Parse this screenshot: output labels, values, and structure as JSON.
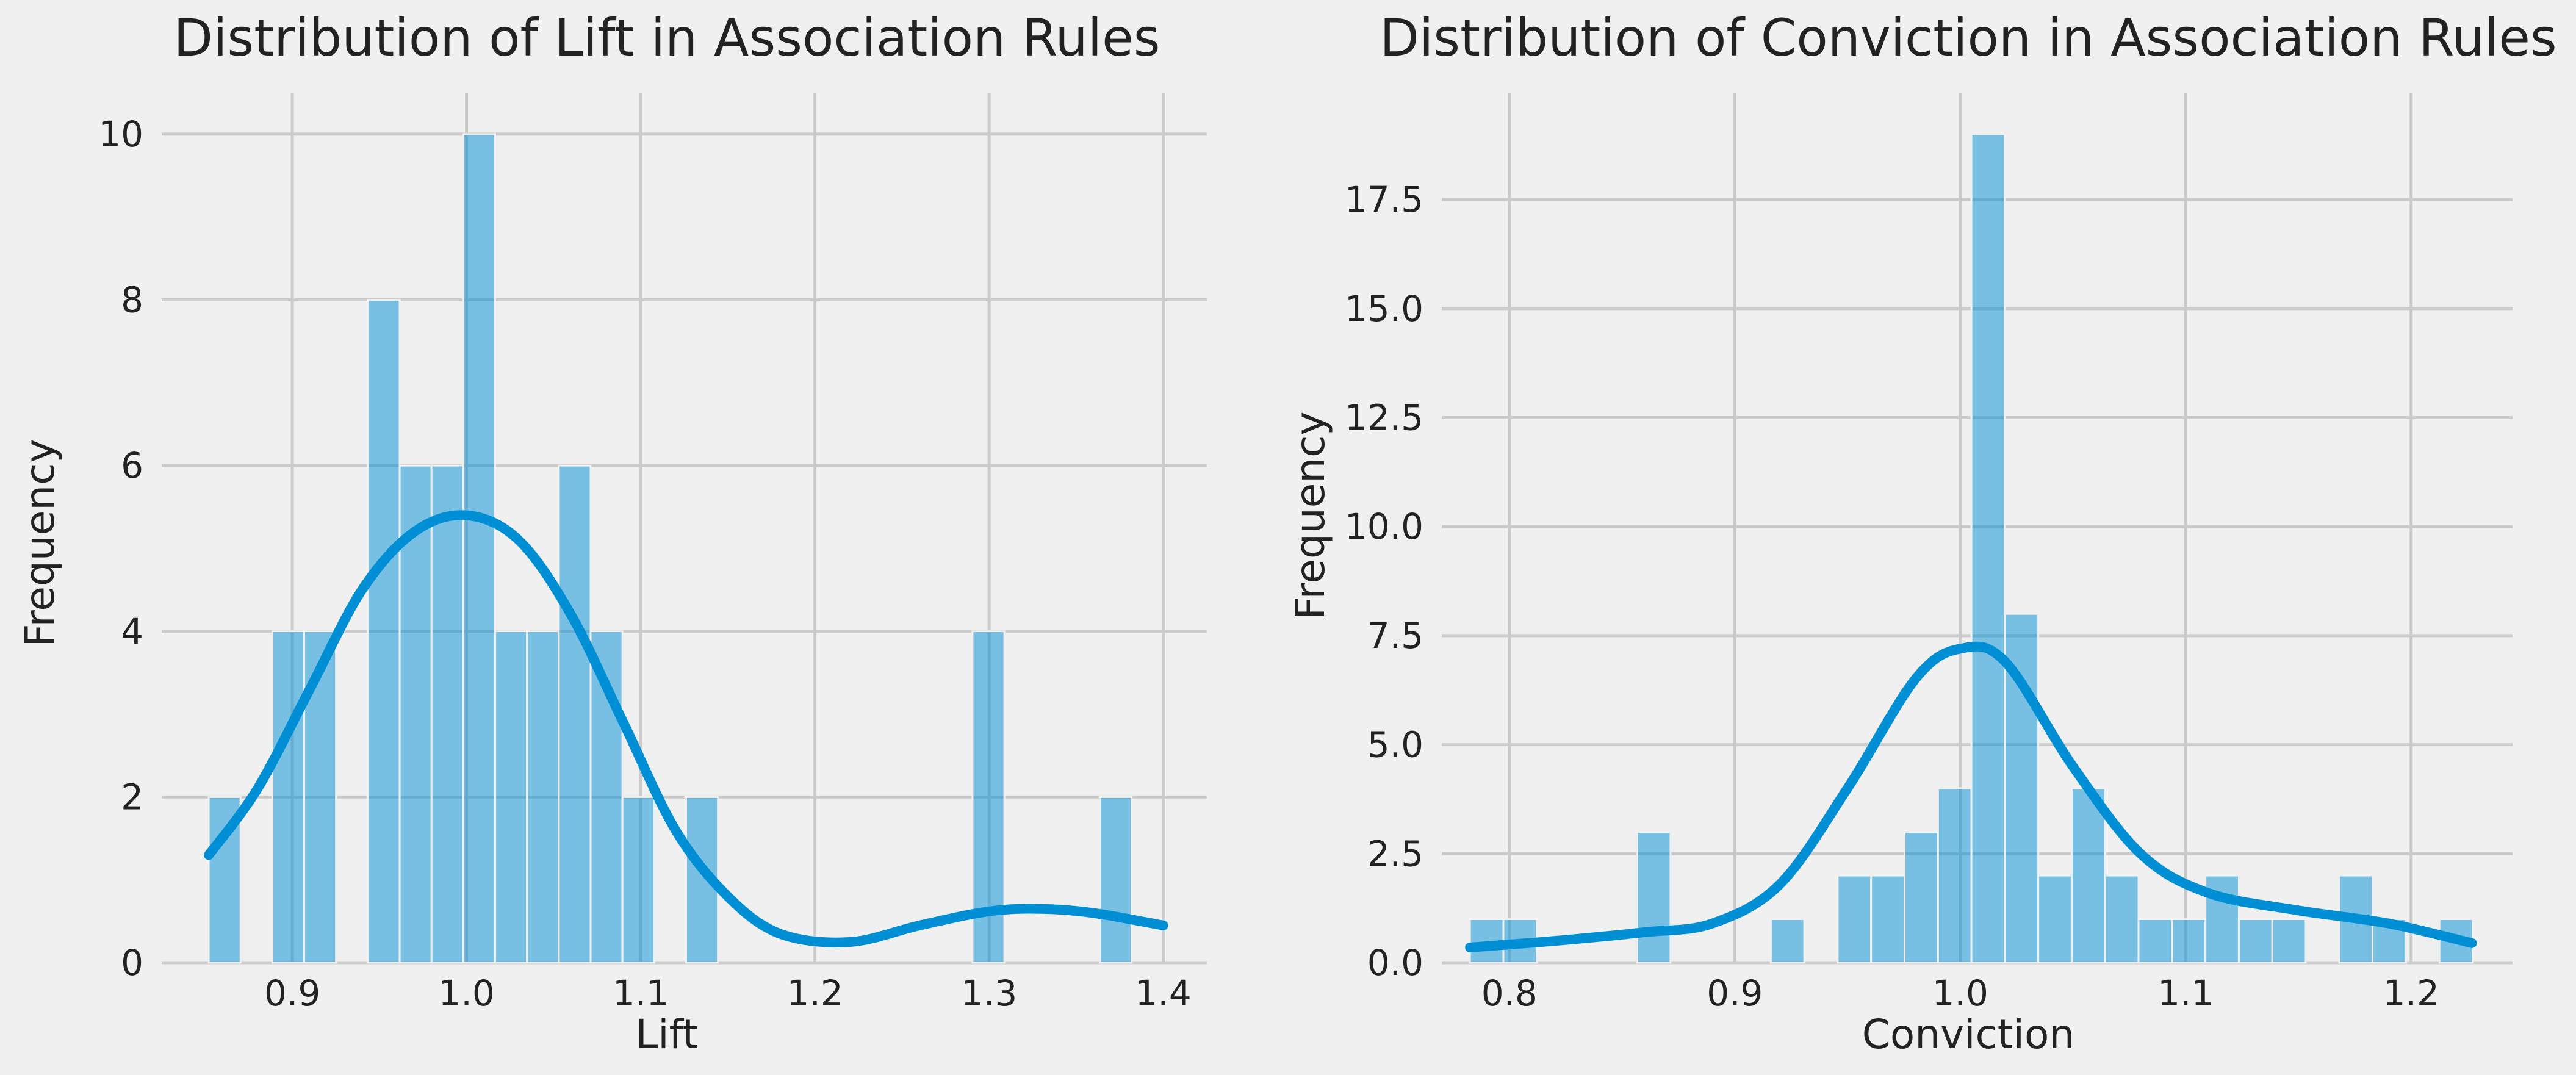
{
  "chart_data": [
    {
      "type": "histogram",
      "title": "Distribution of Lift in Association Rules",
      "xlabel": "Lift",
      "ylabel": "Frequency",
      "xlim": [
        0.825,
        1.425
      ],
      "ylim": [
        0,
        10.5
      ],
      "xticks": [
        0.9,
        1.0,
        1.1,
        1.2,
        1.3,
        1.4
      ],
      "xtick_labels": [
        "0.9",
        "1.0",
        "1.1",
        "1.2",
        "1.3",
        "1.4"
      ],
      "yticks": [
        0,
        2,
        4,
        6,
        8,
        10
      ],
      "ytick_labels": [
        "0",
        "2",
        "4",
        "6",
        "8",
        "10"
      ],
      "grid": true,
      "bin_start": 0.852,
      "bin_width": 0.01827,
      "counts": [
        2,
        0,
        4,
        4,
        0,
        8,
        6,
        6,
        10,
        4,
        4,
        6,
        4,
        2,
        0,
        2,
        0,
        0,
        0,
        0,
        0,
        0,
        0,
        0,
        4,
        0,
        0,
        0,
        2
      ],
      "kde": {
        "x": [
          0.852,
          0.88,
          0.91,
          0.94,
          0.97,
          1.0,
          1.03,
          1.06,
          1.09,
          1.12,
          1.15,
          1.18,
          1.22,
          1.26,
          1.3,
          1.33,
          1.36,
          1.4
        ],
        "y": [
          1.3,
          2.1,
          3.3,
          4.5,
          5.2,
          5.4,
          5.1,
          4.2,
          2.9,
          1.6,
          0.8,
          0.35,
          0.25,
          0.45,
          0.62,
          0.65,
          0.6,
          0.45
        ]
      }
    },
    {
      "type": "histogram",
      "title": "Distribution of Conviction in Association Rules",
      "xlabel": "Conviction",
      "ylabel": "Frequency",
      "xlim": [
        0.77,
        1.245
      ],
      "ylim": [
        0,
        19.95
      ],
      "xticks": [
        0.8,
        0.9,
        1.0,
        1.1,
        1.2
      ],
      "xtick_labels": [
        "0.8",
        "0.9",
        "1.0",
        "1.1",
        "1.2"
      ],
      "yticks": [
        0,
        2.5,
        5,
        7.5,
        10,
        12.5,
        15,
        17.5
      ],
      "ytick_labels": [
        "0.0",
        "2.5",
        "5.0",
        "7.5",
        "10.0",
        "12.5",
        "15.0",
        "17.5"
      ],
      "grid": true,
      "bin_start": 0.7825,
      "bin_width": 0.01483,
      "counts": [
        1,
        1,
        0,
        0,
        0,
        3,
        0,
        0,
        0,
        1,
        0,
        2,
        2,
        3,
        4,
        19,
        8,
        2,
        4,
        2,
        1,
        1,
        2,
        1,
        1,
        0,
        2,
        1,
        0,
        1
      ],
      "kde": {
        "x": [
          0.7825,
          0.82,
          0.86,
          0.89,
          0.92,
          0.95,
          0.98,
          1.0,
          1.02,
          1.05,
          1.08,
          1.11,
          1.15,
          1.19,
          1.227
        ],
        "y": [
          0.35,
          0.5,
          0.7,
          0.9,
          1.8,
          4.0,
          6.5,
          7.2,
          6.9,
          4.5,
          2.5,
          1.6,
          1.2,
          0.9,
          0.45
        ]
      }
    }
  ]
}
